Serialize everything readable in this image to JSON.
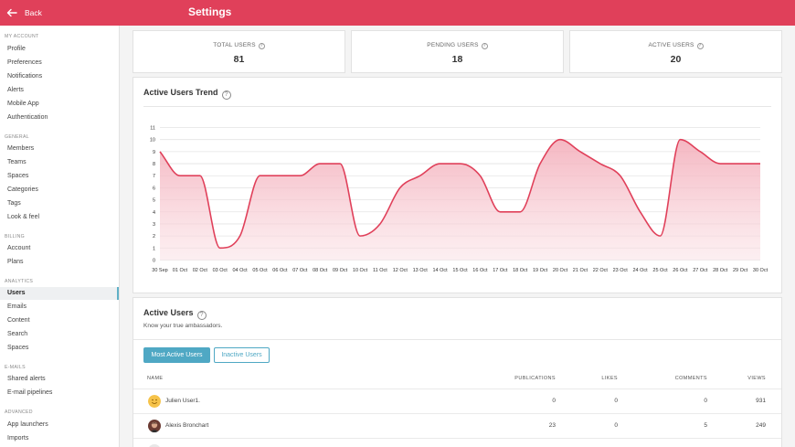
{
  "header": {
    "back_label": "Back",
    "title": "Settings",
    "color": "#e0405a"
  },
  "sidebar": {
    "sections": [
      {
        "title": "MY ACCOUNT",
        "items": [
          "Profile",
          "Preferences",
          "Notifications",
          "Alerts",
          "Mobile App",
          "Authentication"
        ]
      },
      {
        "title": "GENERAL",
        "items": [
          "Members",
          "Teams",
          "Spaces",
          "Categories",
          "Tags",
          "Look & feel"
        ]
      },
      {
        "title": "BILLING",
        "items": [
          "Account",
          "Plans"
        ]
      },
      {
        "title": "ANALYTICS",
        "items": [
          "Users",
          "Emails",
          "Content",
          "Search",
          "Spaces"
        ]
      },
      {
        "title": "E-MAILS",
        "items": [
          "Shared alerts",
          "E-mail pipelines"
        ]
      },
      {
        "title": "ADVANCED",
        "items": [
          "App launchers",
          "Imports"
        ]
      }
    ],
    "active_item": "Users"
  },
  "stats": [
    {
      "label": "TOTAL USERS",
      "value": "81"
    },
    {
      "label": "PENDING USERS",
      "value": "18"
    },
    {
      "label": "ACTIVE USERS",
      "value": "20"
    }
  ],
  "trend": {
    "title": "Active Users Trend",
    "line_color": "#e0405a",
    "fill_color": "#f6c7cf"
  },
  "chart_data": {
    "type": "area",
    "x": [
      "30 Sep",
      "01 Oct",
      "02 Oct",
      "03 Oct",
      "04 Oct",
      "05 Oct",
      "06 Oct",
      "07 Oct",
      "08 Oct",
      "09 Oct",
      "10 Oct",
      "11 Oct",
      "12 Oct",
      "13 Oct",
      "14 Oct",
      "15 Oct",
      "16 Oct",
      "17 Oct",
      "18 Oct",
      "19 Oct",
      "20 Oct",
      "21 Oct",
      "22 Oct",
      "23 Oct",
      "24 Oct",
      "25 Oct",
      "26 Oct",
      "27 Oct",
      "28 Oct",
      "29 Oct",
      "30 Oct"
    ],
    "series": [
      {
        "values": [
          9,
          7,
          7,
          1,
          2,
          7,
          7,
          7,
          8,
          8,
          2,
          3,
          6,
          7,
          8,
          8,
          7,
          4,
          4,
          8,
          10,
          9,
          8,
          7,
          4,
          2,
          10,
          9,
          8,
          8,
          8
        ]
      }
    ],
    "yticks": [
      0,
      1,
      2,
      3,
      4,
      5,
      6,
      7,
      8,
      9,
      10,
      11
    ],
    "ylim": [
      0,
      11
    ],
    "grid": true,
    "title": "",
    "xlabel": "",
    "ylabel": ""
  },
  "active_users": {
    "title": "Active Users",
    "subtitle": "Know your true ambassadors.",
    "buttons": {
      "most_active": "Most Active Users",
      "inactive": "Inactive Users"
    },
    "columns": {
      "name": "NAME",
      "publications": "PUBLICATIONS",
      "likes": "LIKES",
      "comments": "COMMENTS",
      "views": "VIEWS"
    },
    "rows": [
      {
        "name": "Julien User1.",
        "publications": "0",
        "likes": "0",
        "comments": "0",
        "views": "931"
      },
      {
        "name": "Alexis Bronchart",
        "publications": "23",
        "likes": "0",
        "comments": "5",
        "views": "249"
      }
    ]
  }
}
